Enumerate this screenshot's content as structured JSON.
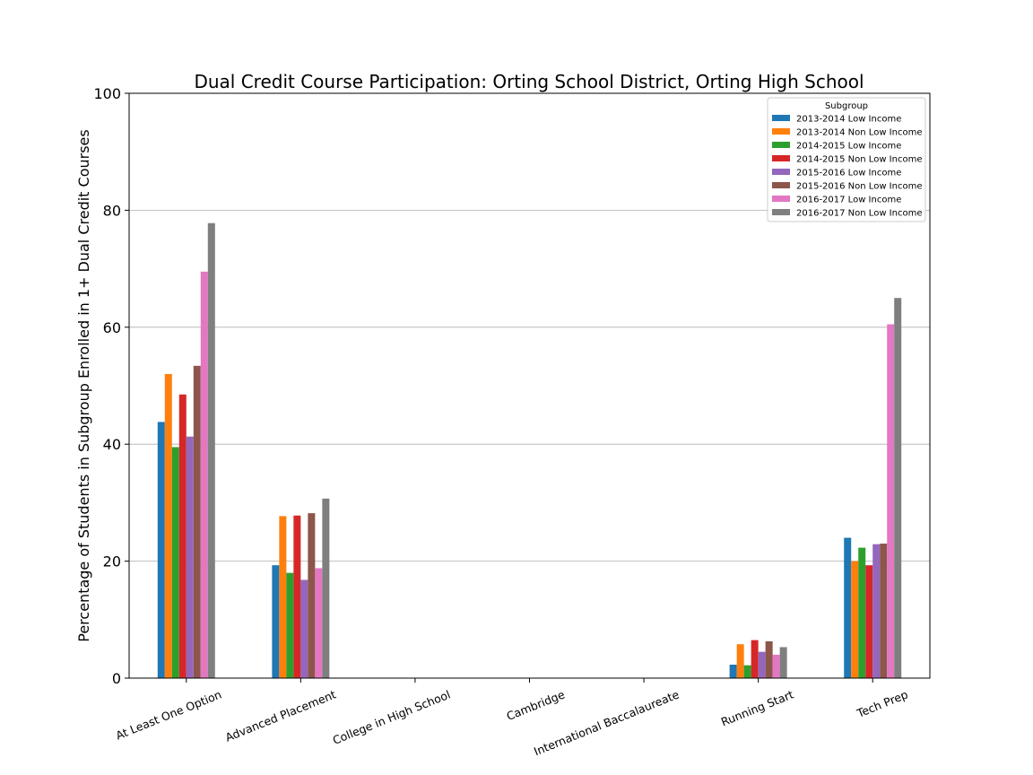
{
  "chart_data": {
    "type": "bar",
    "title": "Dual Credit Course Participation: Orting School District, Orting High School",
    "xlabel": "",
    "ylabel": "Percentage of Students in Subgroup Enrolled in 1+ Dual Credit Courses",
    "ylim": [
      0,
      100
    ],
    "yticks": [
      0,
      20,
      40,
      60,
      80,
      100
    ],
    "grid": "horizontal",
    "legend_title": "Subgroup",
    "legend_position": "top-right",
    "categories": [
      "At Least One Option",
      "Advanced Placement",
      "College in High School",
      "Cambridge",
      "International Baccalaureate",
      "Running Start",
      "Tech Prep"
    ],
    "series": [
      {
        "name": "2013-2014 Low Income",
        "color": "#1f77b4",
        "values": [
          43.8,
          19.3,
          0,
          0,
          0,
          2.3,
          24.0
        ]
      },
      {
        "name": "2013-2014 Non Low Income",
        "color": "#ff7f0e",
        "values": [
          52.0,
          27.7,
          0,
          0,
          0,
          5.8,
          20.0
        ]
      },
      {
        "name": "2014-2015 Low Income",
        "color": "#2ca02c",
        "values": [
          39.5,
          18.0,
          0,
          0,
          0,
          2.2,
          22.3
        ]
      },
      {
        "name": "2014-2015 Non Low Income",
        "color": "#d62728",
        "values": [
          48.5,
          27.8,
          0,
          0,
          0,
          6.5,
          19.3
        ]
      },
      {
        "name": "2015-2016 Low Income",
        "color": "#9467bd",
        "values": [
          41.3,
          16.8,
          0,
          0,
          0,
          4.5,
          22.9
        ]
      },
      {
        "name": "2015-2016 Non Low Income",
        "color": "#8c564b",
        "values": [
          53.4,
          28.2,
          0,
          0,
          0,
          6.3,
          23.0
        ]
      },
      {
        "name": "2016-2017 Low Income",
        "color": "#e377c2",
        "values": [
          69.5,
          18.8,
          0,
          0,
          0,
          4.0,
          60.5
        ]
      },
      {
        "name": "2016-2017 Non Low Income",
        "color": "#7f7f7f",
        "values": [
          77.8,
          30.7,
          0,
          0,
          0,
          5.3,
          65.0
        ]
      }
    ]
  }
}
